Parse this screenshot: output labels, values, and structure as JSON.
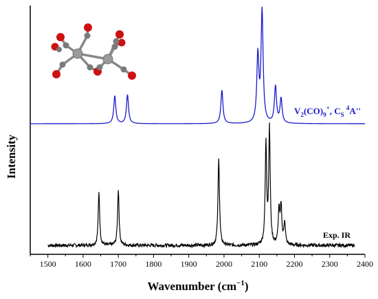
{
  "chart_data": {
    "type": "line",
    "xlabel": "Wavenumber (cm",
    "xlabel_sup": "−1",
    "xlabel_close": ")",
    "ylabel": "Intensity",
    "xlim": [
      1450,
      2400
    ],
    "xticks": [
      1500,
      1600,
      1700,
      1800,
      1900,
      2000,
      2100,
      2200,
      2300,
      2400
    ],
    "grid": false,
    "series": [
      {
        "name": "calculated",
        "label": {
          "p1": "V",
          "p1_sub": "2",
          "p2": "(CO)",
          "p2_sub": "9",
          "p2_sup": "+",
          "p3": ", C",
          "p3_sub": "S",
          "p4": " ",
          "p4_sup": "4",
          "p5": "A''"
        },
        "color": "#1a1acc",
        "range": [
          1450,
          2400
        ],
        "baseline": 0,
        "hwhm": 3.5,
        "peaks": [
          {
            "x": 1690,
            "y": 0.25
          },
          {
            "x": 1726,
            "y": 0.26
          },
          {
            "x": 1994,
            "y": 0.3
          },
          {
            "x": 2096,
            "y": 0.6
          },
          {
            "x": 2108,
            "y": 1.0
          },
          {
            "x": 2146,
            "y": 0.33
          },
          {
            "x": 2162,
            "y": 0.22
          }
        ]
      },
      {
        "name": "experimental",
        "label": {
          "text": "Exp. IR"
        },
        "color": "#000000",
        "range": [
          1500,
          2370
        ],
        "baseline": 0,
        "hwhm": 2.5,
        "noise": 0.015,
        "peaks": [
          {
            "x": 1645,
            "y": 0.46
          },
          {
            "x": 1700,
            "y": 0.49
          },
          {
            "x": 1985,
            "y": 0.77
          },
          {
            "x": 2119,
            "y": 0.88
          },
          {
            "x": 2129,
            "y": 1.0
          },
          {
            "x": 2156,
            "y": 0.3
          },
          {
            "x": 2162,
            "y": 0.33
          },
          {
            "x": 2172,
            "y": 0.2
          }
        ]
      }
    ]
  },
  "molecule": {
    "name": "V2(CO)9+ structure",
    "atom_colors": {
      "vanadium": "#9a9a9a",
      "oxygen": "#cc1111",
      "carbon": "#7a7a7a"
    }
  }
}
